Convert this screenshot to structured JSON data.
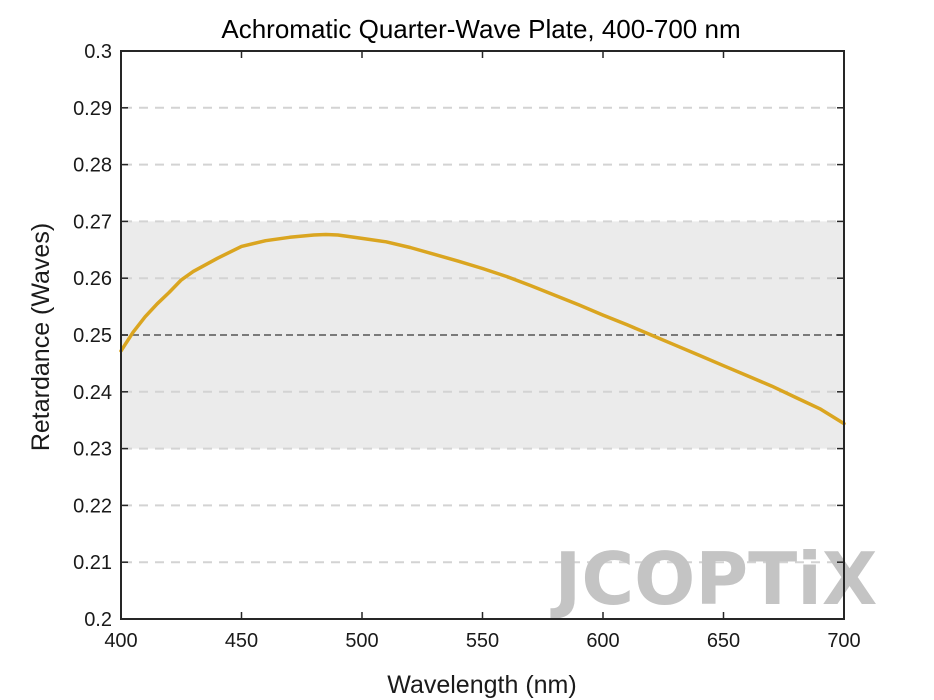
{
  "chart_data": {
    "type": "line",
    "title": "Achromatic Quarter-Wave Plate, 400-700 nm",
    "xlabel": "Wavelength (nm)",
    "ylabel": "Retardance (Waves)",
    "xlim": [
      400,
      700
    ],
    "ylim": [
      0.2,
      0.3
    ],
    "xticks": [
      "400",
      "450",
      "500",
      "550",
      "600",
      "650",
      "700"
    ],
    "yticks": [
      "0.2",
      "0.21",
      "0.22",
      "0.23",
      "0.24",
      "0.25",
      "0.26",
      "0.27",
      "0.28",
      "0.29",
      "0.3"
    ],
    "grid": "dashed horizontal",
    "tolerance_band": [
      0.23,
      0.27
    ],
    "reference_line": 0.25,
    "series": [
      {
        "color": "#DAA520",
        "x": [
          400,
          405,
          410,
          415,
          420,
          425,
          430,
          440,
          450,
          460,
          470,
          480,
          485,
          490,
          500,
          510,
          520,
          530,
          540,
          550,
          560,
          570,
          580,
          590,
          600,
          610,
          620,
          630,
          640,
          650,
          660,
          670,
          680,
          690,
          700
        ],
        "y": [
          0.2472,
          0.2505,
          0.2532,
          0.2555,
          0.2575,
          0.2597,
          0.2612,
          0.2635,
          0.2656,
          0.2666,
          0.2672,
          0.2676,
          0.2677,
          0.2676,
          0.267,
          0.2664,
          0.2654,
          0.2642,
          0.263,
          0.2617,
          0.2603,
          0.2587,
          0.257,
          0.2553,
          0.2535,
          0.2518,
          0.25,
          0.2482,
          0.2464,
          0.2446,
          0.2428,
          0.241,
          0.239,
          0.237,
          0.2344
        ]
      }
    ]
  },
  "watermark": "JCOPTiX"
}
